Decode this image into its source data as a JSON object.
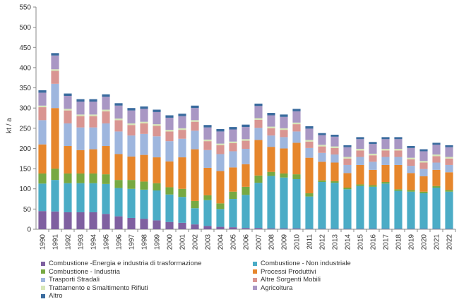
{
  "chart_data": {
    "type": "bar",
    "stacked": true,
    "title": "",
    "xlabel": "",
    "ylabel": "kt / a",
    "ylim": [
      0,
      550
    ],
    "yticks": [
      0,
      50,
      100,
      150,
      200,
      250,
      300,
      350,
      400,
      450,
      500,
      550
    ],
    "grid": false,
    "legend_position": "bottom",
    "categories": [
      "1990",
      "1991",
      "1992",
      "1993",
      "1994",
      "1995",
      "1996",
      "1997",
      "1998",
      "1999",
      "2000",
      "2001",
      "2002",
      "2003",
      "2004",
      "2005",
      "2006",
      "2007",
      "2008",
      "2009",
      "2010",
      "2011",
      "2012",
      "2013",
      "2014",
      "2015",
      "2016",
      "2017",
      "2018",
      "2019",
      "2020",
      "2021",
      "2022"
    ],
    "series": [
      {
        "name": "Combustione -Energia e industria di trasformazione",
        "color": "#7f60a0",
        "values": [
          45,
          44,
          42,
          42,
          42,
          38,
          32,
          28,
          26,
          22,
          18,
          16,
          12,
          8,
          6,
          5,
          3,
          3,
          2,
          2,
          2,
          1,
          1,
          1,
          1,
          1,
          1,
          1,
          1,
          1,
          1,
          1,
          1
        ]
      },
      {
        "name": "Combustione - Non industriale",
        "color": "#4bacc6",
        "values": [
          68,
          78,
          72,
          72,
          72,
          74,
          70,
          72,
          72,
          74,
          68,
          64,
          40,
          64,
          44,
          70,
          82,
          112,
          130,
          126,
          122,
          80,
          116,
          114,
          98,
          106,
          104,
          112,
          94,
          92,
          88,
          102,
          92
        ]
      },
      {
        "name": "Combustione - Industria",
        "color": "#77a942",
        "values": [
          25,
          28,
          24,
          24,
          24,
          24,
          20,
          22,
          20,
          18,
          18,
          20,
          18,
          12,
          14,
          18,
          20,
          18,
          10,
          10,
          12,
          8,
          4,
          4,
          4,
          4,
          4,
          4,
          4,
          4,
          4,
          4,
          4
        ]
      },
      {
        "name": "Processi Produttivi",
        "color": "#e6862c",
        "values": [
          72,
          150,
          68,
          58,
          60,
          70,
          64,
          58,
          66,
          64,
          64,
          78,
          128,
          68,
          80,
          60,
          56,
          88,
          62,
          62,
          78,
          88,
          46,
          46,
          36,
          48,
          38,
          42,
          60,
          42,
          38,
          40,
          44
        ]
      },
      {
        "name": "Trasporti Stradali",
        "color": "#9eb6de",
        "values": [
          60,
          60,
          56,
          56,
          54,
          56,
          56,
          52,
          52,
          52,
          50,
          46,
          46,
          44,
          42,
          40,
          38,
          30,
          28,
          28,
          28,
          24,
          22,
          20,
          20,
          20,
          20,
          20,
          20,
          18,
          18,
          18,
          18
        ]
      },
      {
        "name": "Altre Sorgenti Mobili",
        "color": "#d99592",
        "values": [
          32,
          32,
          32,
          28,
          28,
          30,
          28,
          26,
          26,
          26,
          24,
          22,
          22,
          22,
          22,
          20,
          20,
          20,
          18,
          18,
          18,
          16,
          16,
          16,
          16,
          16,
          16,
          16,
          16,
          16,
          16,
          16,
          16
        ]
      },
      {
        "name": "Trattamento e Smaltimento Rifiuti",
        "color": "#d6e6b8",
        "values": [
          4,
          4,
          4,
          4,
          4,
          4,
          4,
          4,
          4,
          4,
          4,
          4,
          4,
          4,
          4,
          4,
          4,
          4,
          4,
          4,
          4,
          4,
          4,
          4,
          4,
          4,
          4,
          4,
          4,
          4,
          4,
          4,
          4
        ]
      },
      {
        "name": "Agricoltura",
        "color": "#a997c4",
        "values": [
          32,
          34,
          32,
          32,
          32,
          32,
          32,
          32,
          32,
          30,
          30,
          30,
          30,
          30,
          30,
          30,
          30,
          30,
          28,
          28,
          28,
          28,
          24,
          24,
          24,
          24,
          24,
          24,
          24,
          24,
          24,
          24,
          24
        ]
      },
      {
        "name": "Altro",
        "color": "#3a6b9e",
        "values": [
          6,
          6,
          6,
          6,
          6,
          6,
          6,
          6,
          6,
          6,
          6,
          6,
          6,
          6,
          6,
          6,
          6,
          6,
          6,
          6,
          6,
          6,
          5,
          5,
          5,
          5,
          5,
          5,
          5,
          5,
          5,
          5,
          5
        ]
      }
    ]
  }
}
